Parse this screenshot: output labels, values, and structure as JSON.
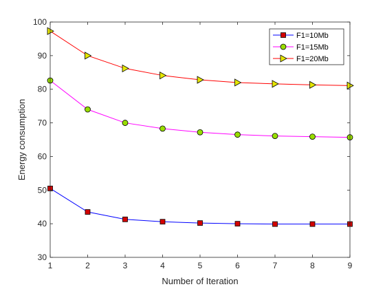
{
  "chart_data": {
    "type": "line",
    "title": "",
    "xlabel": "Number of Iteration",
    "ylabel": "Energy consumption",
    "x": [
      1,
      2,
      3,
      4,
      5,
      6,
      7,
      8,
      9
    ],
    "xlim": [
      1,
      9
    ],
    "ylim": [
      30,
      100
    ],
    "xticks": [
      1,
      2,
      3,
      4,
      5,
      6,
      7,
      8,
      9
    ],
    "yticks": [
      30,
      40,
      50,
      60,
      70,
      80,
      90,
      100
    ],
    "grid": false,
    "legend_position": "top-right",
    "series": [
      {
        "name": "F1=10Mb",
        "marker": "square",
        "line_color": "#0000ff",
        "marker_fill": "#d40000",
        "values": [
          50.5,
          43.5,
          41.3,
          40.6,
          40.2,
          40.0,
          39.9,
          39.9,
          39.9
        ]
      },
      {
        "name": "F1=15Mb",
        "marker": "circle",
        "line_color": "#ff00ff",
        "marker_fill": "#99dd00",
        "values": [
          82.6,
          74.0,
          70.0,
          68.3,
          67.2,
          66.5,
          66.1,
          65.9,
          65.7
        ]
      },
      {
        "name": "F1=20Mb",
        "marker": "triangle-right",
        "line_color": "#ff0000",
        "marker_fill": "#e6e600",
        "values": [
          97.3,
          90.0,
          86.2,
          84.1,
          82.8,
          82.0,
          81.6,
          81.3,
          81.1
        ]
      }
    ]
  }
}
